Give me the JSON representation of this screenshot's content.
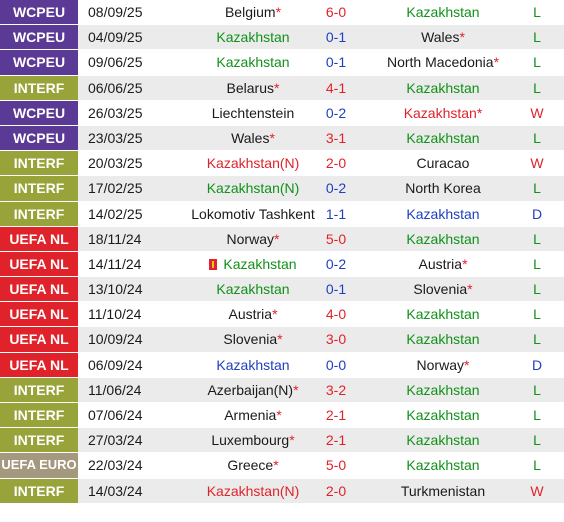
{
  "colors": {
    "wcpeu": "#5b3a96",
    "interf": "#98a33a",
    "uefa_nl": "#e0232b",
    "uefa_euro": "#a4997e",
    "win": "#e0232b",
    "loss": "#11911a",
    "draw": "#1f3fc0"
  },
  "matches": [
    {
      "comp": "WCPEU",
      "ctype": "wc",
      "date": "08/09/25",
      "home": "Belgium",
      "home_star": true,
      "home_color": "black",
      "score": "6-0",
      "score_color": "red",
      "away": "Kazakhstan",
      "away_star": false,
      "away_color": "green",
      "result": "L"
    },
    {
      "comp": "WCPEU",
      "ctype": "wc",
      "date": "04/09/25",
      "home": "Kazakhstan",
      "home_star": false,
      "home_color": "green",
      "score": "0-1",
      "score_color": "blue",
      "away": "Wales",
      "away_star": true,
      "away_color": "black",
      "result": "L"
    },
    {
      "comp": "WCPEU",
      "ctype": "wc",
      "date": "09/06/25",
      "home": "Kazakhstan",
      "home_star": false,
      "home_color": "green",
      "score": "0-1",
      "score_color": "blue",
      "away": "North Macedonia",
      "away_star": true,
      "away_color": "black",
      "result": "L"
    },
    {
      "comp": "INTERF",
      "ctype": "in",
      "date": "06/06/25",
      "home": "Belarus",
      "home_star": true,
      "home_color": "black",
      "score": "4-1",
      "score_color": "red",
      "away": "Kazakhstan",
      "away_star": false,
      "away_color": "green",
      "result": "L"
    },
    {
      "comp": "WCPEU",
      "ctype": "wc",
      "date": "26/03/25",
      "home": "Liechtenstein",
      "home_star": false,
      "home_color": "black",
      "score": "0-2",
      "score_color": "blue",
      "away": "Kazakhstan",
      "away_star": true,
      "away_color": "red",
      "result": "W"
    },
    {
      "comp": "WCPEU",
      "ctype": "wc",
      "date": "23/03/25",
      "home": "Wales",
      "home_star": true,
      "home_color": "black",
      "score": "3-1",
      "score_color": "red",
      "away": "Kazakhstan",
      "away_star": false,
      "away_color": "green",
      "result": "L"
    },
    {
      "comp": "INTERF",
      "ctype": "in",
      "date": "20/03/25",
      "home": "Kazakhstan(N)",
      "home_star": false,
      "home_color": "red",
      "score": "2-0",
      "score_color": "red",
      "away": "Curacao",
      "away_star": false,
      "away_color": "black",
      "result": "W"
    },
    {
      "comp": "INTERF",
      "ctype": "in",
      "date": "17/02/25",
      "home": "Kazakhstan(N)",
      "home_star": false,
      "home_color": "green",
      "score": "0-2",
      "score_color": "blue",
      "away": "North Korea",
      "away_star": false,
      "away_color": "black",
      "result": "L"
    },
    {
      "comp": "INTERF",
      "ctype": "in",
      "date": "14/02/25",
      "home": "Lokomotiv Tashkent",
      "home_star": false,
      "home_color": "black",
      "score": "1-1",
      "score_color": "blue",
      "away": "Kazakhstan",
      "away_star": false,
      "away_color": "blue",
      "result": "D"
    },
    {
      "comp": "UEFA NL",
      "ctype": "nl",
      "date": "18/11/24",
      "home": "Norway",
      "home_star": true,
      "home_color": "black",
      "score": "5-0",
      "score_color": "red",
      "away": "Kazakhstan",
      "away_star": false,
      "away_color": "green",
      "result": "L"
    },
    {
      "comp": "UEFA NL",
      "ctype": "nl",
      "date": "14/11/24",
      "home": "Kazakhstan",
      "home_star": false,
      "home_color": "green",
      "home_flag": true,
      "score": "0-2",
      "score_color": "blue",
      "away": "Austria",
      "away_star": true,
      "away_color": "black",
      "result": "L"
    },
    {
      "comp": "UEFA NL",
      "ctype": "nl",
      "date": "13/10/24",
      "home": "Kazakhstan",
      "home_star": false,
      "home_color": "green",
      "score": "0-1",
      "score_color": "blue",
      "away": "Slovenia",
      "away_star": true,
      "away_color": "black",
      "result": "L"
    },
    {
      "comp": "UEFA NL",
      "ctype": "nl",
      "date": "11/10/24",
      "home": "Austria",
      "home_star": true,
      "home_color": "black",
      "score": "4-0",
      "score_color": "red",
      "away": "Kazakhstan",
      "away_star": false,
      "away_color": "green",
      "result": "L"
    },
    {
      "comp": "UEFA NL",
      "ctype": "nl",
      "date": "10/09/24",
      "home": "Slovenia",
      "home_star": true,
      "home_color": "black",
      "score": "3-0",
      "score_color": "red",
      "away": "Kazakhstan",
      "away_star": false,
      "away_color": "green",
      "result": "L"
    },
    {
      "comp": "UEFA NL",
      "ctype": "nl",
      "date": "06/09/24",
      "home": "Kazakhstan",
      "home_star": false,
      "home_color": "blue",
      "score": "0-0",
      "score_color": "blue",
      "away": "Norway",
      "away_star": true,
      "away_color": "black",
      "result": "D"
    },
    {
      "comp": "INTERF",
      "ctype": "in",
      "date": "11/06/24",
      "home": "Azerbaijan(N)",
      "home_star": true,
      "home_color": "black",
      "score": "3-2",
      "score_color": "red",
      "away": "Kazakhstan",
      "away_star": false,
      "away_color": "green",
      "result": "L"
    },
    {
      "comp": "INTERF",
      "ctype": "in",
      "date": "07/06/24",
      "home": "Armenia",
      "home_star": true,
      "home_color": "black",
      "score": "2-1",
      "score_color": "red",
      "away": "Kazakhstan",
      "away_star": false,
      "away_color": "green",
      "result": "L"
    },
    {
      "comp": "INTERF",
      "ctype": "in",
      "date": "27/03/24",
      "home": "Luxembourg",
      "home_star": true,
      "home_color": "black",
      "score": "2-1",
      "score_color": "red",
      "away": "Kazakhstan",
      "away_star": false,
      "away_color": "green",
      "result": "L"
    },
    {
      "comp": "UEFA EURO",
      "ctype": "eu",
      "date": "22/03/24",
      "home": "Greece",
      "home_star": true,
      "home_color": "black",
      "score": "5-0",
      "score_color": "red",
      "away": "Kazakhstan",
      "away_star": false,
      "away_color": "green",
      "result": "L"
    },
    {
      "comp": "INTERF",
      "ctype": "in",
      "date": "14/03/24",
      "home": "Kazakhstan(N)",
      "home_star": false,
      "home_color": "red",
      "score": "2-0",
      "score_color": "red",
      "away": "Turkmenistan",
      "away_star": false,
      "away_color": "black",
      "result": "W"
    }
  ]
}
